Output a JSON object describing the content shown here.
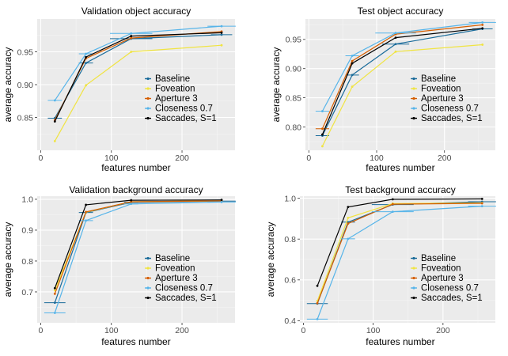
{
  "colors": {
    "Baseline": "#1a6b9a",
    "Foveation": "#f0e442",
    "Aperture 3": "#d55e00",
    "Closeness 0.7": "#56b4e9",
    "Saccades, S=1": "#000000",
    "panel_background": "#ebebeb",
    "grid_major": "#ffffff",
    "grid_minor": "#f5f5f5"
  },
  "chart_data": [
    {
      "type": "line",
      "title": "Validation object accuracy",
      "xlabel": "features number",
      "ylabel": "average accuracy",
      "xlim": [
        -5,
        275
      ],
      "ylim": [
        0.8,
        1.0
      ],
      "xticks": [
        0,
        100,
        200
      ],
      "yticks": [
        0.85,
        0.9,
        0.95
      ],
      "ytick_labels": [
        "0.85",
        "0.90",
        "0.95"
      ],
      "x": [
        20,
        64,
        128,
        256
      ],
      "grid": true,
      "legend_position": "inside-right",
      "series": [
        {
          "name": "Baseline",
          "values": [
            0.849,
            0.933,
            0.97,
            0.976
          ],
          "xerr": [
            10,
            10,
            30,
            15
          ]
        },
        {
          "name": "Foveation",
          "values": [
            0.814,
            0.899,
            0.95,
            0.96
          ],
          "xerr": [
            0,
            0,
            0,
            0
          ]
        },
        {
          "name": "Aperture 3",
          "values": [
            0.846,
            0.94,
            0.971,
            0.981
          ],
          "xerr": [
            0,
            0,
            0,
            0
          ]
        },
        {
          "name": "Closeness 0.7",
          "values": [
            0.876,
            0.947,
            0.978,
            0.989
          ],
          "xerr": [
            10,
            10,
            30,
            20
          ]
        },
        {
          "name": "Saccades, S=1",
          "values": [
            0.844,
            0.942,
            0.974,
            0.979
          ],
          "xerr": [
            0,
            0,
            0,
            0
          ]
        }
      ]
    },
    {
      "type": "line",
      "title": "Test object accuracy",
      "xlabel": "features number",
      "ylabel": "average accuracy",
      "xlim": [
        -5,
        275
      ],
      "ylim": [
        0.76,
        0.985
      ],
      "xticks": [
        0,
        100,
        200
      ],
      "yticks": [
        0.8,
        0.85,
        0.9,
        0.95
      ],
      "ytick_labels": [
        "0.80",
        "0.85",
        "0.90",
        "0.95"
      ],
      "x": [
        20,
        64,
        128,
        256
      ],
      "grid": true,
      "legend_position": "inside-right",
      "series": [
        {
          "name": "Baseline",
          "values": [
            0.785,
            0.889,
            0.942,
            0.968
          ],
          "xerr": [
            10,
            10,
            20,
            15
          ]
        },
        {
          "name": "Foveation",
          "values": [
            0.767,
            0.869,
            0.929,
            0.941
          ],
          "xerr": [
            0,
            0,
            0,
            0
          ]
        },
        {
          "name": "Aperture 3",
          "values": [
            0.797,
            0.913,
            0.959,
            0.975
          ],
          "xerr": [
            10,
            0,
            0,
            0
          ]
        },
        {
          "name": "Closeness 0.7",
          "values": [
            0.827,
            0.922,
            0.961,
            0.979
          ],
          "xerr": [
            10,
            10,
            30,
            20
          ]
        },
        {
          "name": "Saccades, S=1",
          "values": [
            0.787,
            0.909,
            0.953,
            0.969
          ],
          "xerr": [
            0,
            0,
            0,
            0
          ]
        }
      ]
    },
    {
      "type": "line",
      "title": "Validation background accuracy",
      "xlabel": "features number",
      "ylabel": "average accuracy",
      "xlim": [
        -5,
        275
      ],
      "ylim": [
        0.6,
        1.01
      ],
      "xticks": [
        0,
        100,
        200
      ],
      "yticks": [
        0.7,
        0.8,
        0.9,
        1.0
      ],
      "ytick_labels": [
        "0.7",
        "0.8",
        "0.9",
        "1.0"
      ],
      "x": [
        20,
        64,
        128,
        256
      ],
      "grid": true,
      "legend_position": "inside-right",
      "series": [
        {
          "name": "Baseline",
          "values": [
            0.665,
            0.957,
            0.99,
            0.994
          ],
          "xerr": [
            15,
            10,
            10,
            20
          ]
        },
        {
          "name": "Foveation",
          "values": [
            0.705,
            0.958,
            0.992,
            0.995
          ],
          "xerr": [
            0,
            0,
            0,
            0
          ]
        },
        {
          "name": "Aperture 3",
          "values": [
            0.694,
            0.959,
            0.992,
            0.995
          ],
          "xerr": [
            0,
            0,
            0,
            0
          ]
        },
        {
          "name": "Closeness 0.7",
          "values": [
            0.632,
            0.931,
            0.985,
            0.991
          ],
          "xerr": [
            15,
            10,
            10,
            20
          ]
        },
        {
          "name": "Saccades, S=1",
          "values": [
            0.712,
            0.982,
            0.997,
            0.998
          ],
          "xerr": [
            0,
            0,
            0,
            0
          ]
        }
      ]
    },
    {
      "type": "line",
      "title": "Test background accuracy",
      "xlabel": "features number",
      "ylabel": "average accuracy",
      "xlim": [
        -5,
        275
      ],
      "ylim": [
        0.39,
        1.01
      ],
      "xticks": [
        0,
        100,
        200
      ],
      "yticks": [
        0.4,
        0.6,
        0.8,
        1.0
      ],
      "ytick_labels": [
        "0.4",
        "0.6",
        "0.8",
        "1.0"
      ],
      "x": [
        20,
        64,
        128,
        256
      ],
      "grid": true,
      "legend_position": "inside-right",
      "series": [
        {
          "name": "Baseline",
          "values": [
            0.484,
            0.883,
            0.969,
            0.983
          ],
          "xerr": [
            15,
            10,
            30,
            20
          ]
        },
        {
          "name": "Foveation",
          "values": [
            0.497,
            0.904,
            0.974,
            0.977
          ],
          "xerr": [
            0,
            0,
            0,
            0
          ]
        },
        {
          "name": "Aperture 3",
          "values": [
            0.486,
            0.876,
            0.971,
            0.975
          ],
          "xerr": [
            0,
            0,
            0,
            0
          ]
        },
        {
          "name": "Closeness 0.7",
          "values": [
            0.408,
            0.801,
            0.934,
            0.961
          ],
          "xerr": [
            15,
            10,
            30,
            20
          ]
        },
        {
          "name": "Saccades, S=1",
          "values": [
            0.571,
            0.957,
            0.995,
            0.997
          ],
          "xerr": [
            0,
            0,
            0,
            0
          ]
        }
      ]
    }
  ]
}
